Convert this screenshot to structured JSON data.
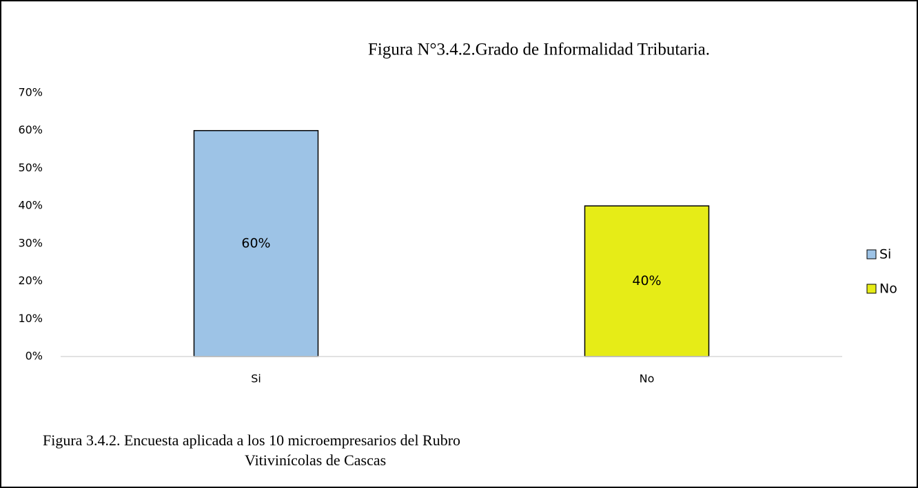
{
  "chart_data": {
    "type": "bar",
    "title": "Figura N°3.4.2.Grado de Informalidad Tributaria.",
    "categories": [
      "Si",
      "No"
    ],
    "values": [
      60,
      40
    ],
    "value_labels": [
      "60%",
      "40%"
    ],
    "colors": [
      "#9dc3e6",
      "#e6ec17"
    ],
    "ylim": [
      0,
      70
    ],
    "yticks": [
      {
        "value": 0,
        "label": "0%"
      },
      {
        "value": 10,
        "label": "10%"
      },
      {
        "value": 20,
        "label": "20%"
      },
      {
        "value": 30,
        "label": "30%"
      },
      {
        "value": 40,
        "label": "40%"
      },
      {
        "value": 50,
        "label": "50%"
      },
      {
        "value": 60,
        "label": "60%"
      },
      {
        "value": 70,
        "label": "70%"
      }
    ],
    "grid": false,
    "legend": "right",
    "caption": [
      "Figura 3.4.2. Encuesta aplicada a los 10 microempresarios del Rubro",
      "Vitivinícolas de Cascas"
    ]
  }
}
